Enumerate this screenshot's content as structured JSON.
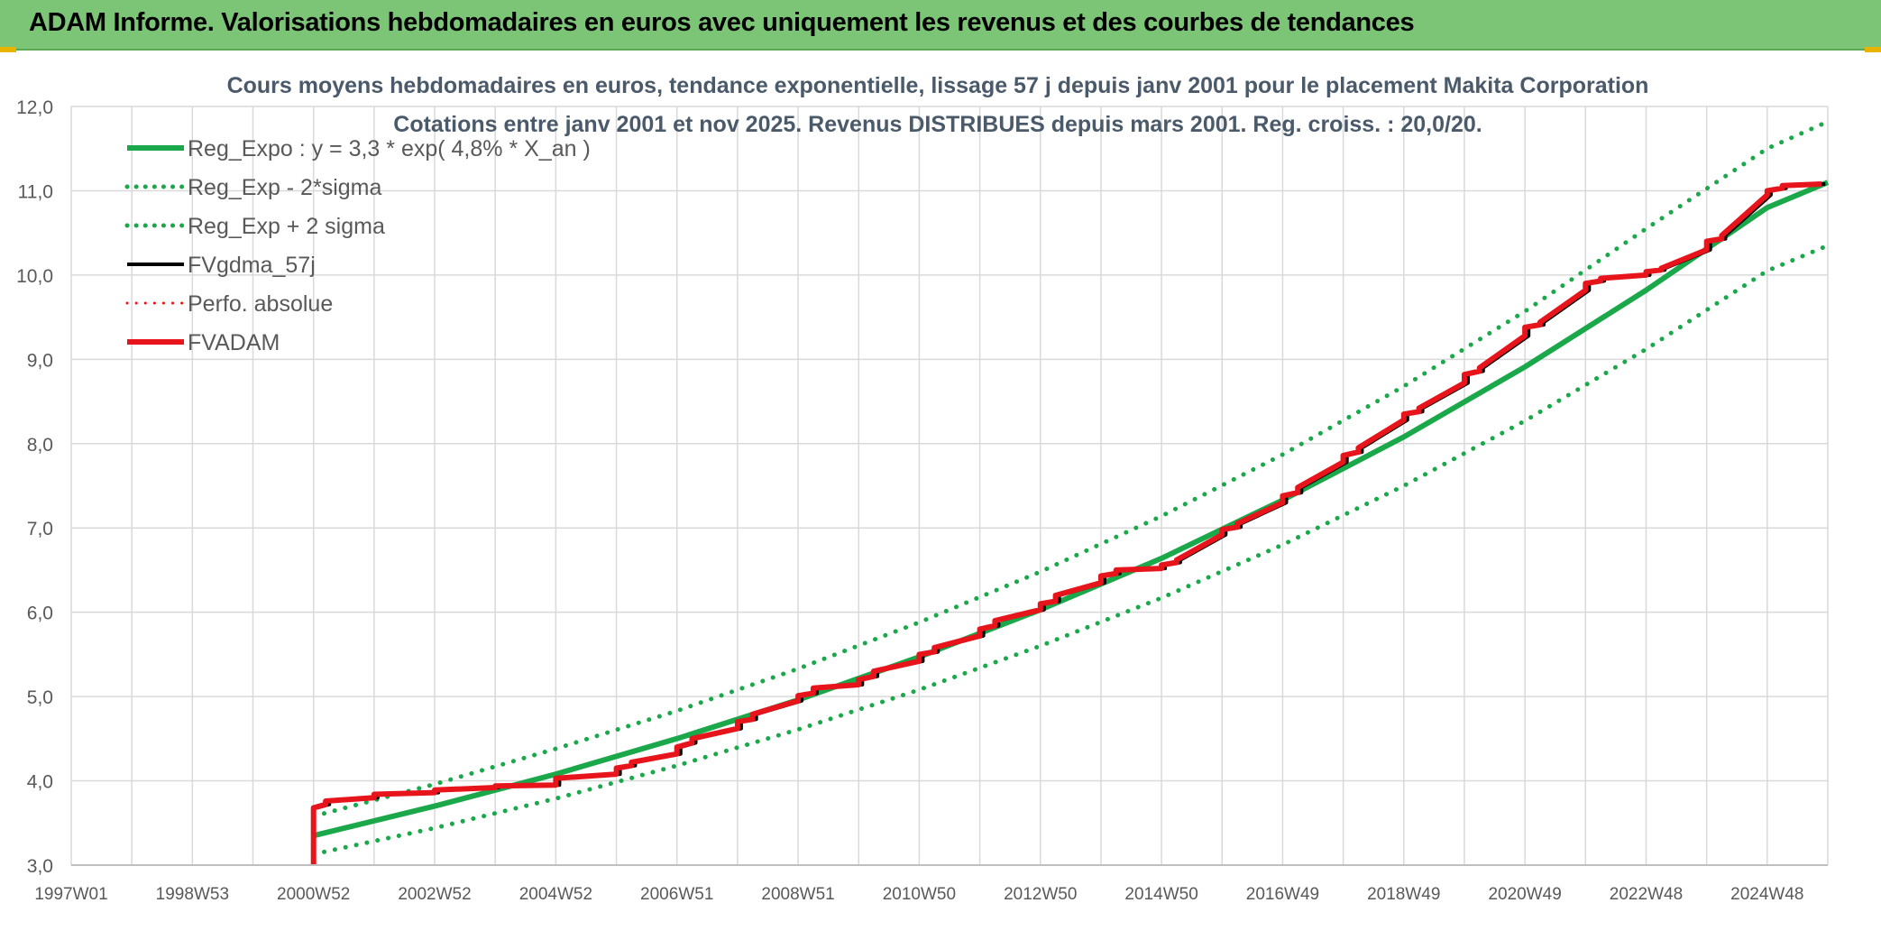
{
  "banner": {
    "title": "ADAM Informe. Valorisations hebdomadaires en euros avec uniquement les revenus et des courbes de tendances"
  },
  "colors": {
    "banner_bg": "#7cc576",
    "reg_expo": "#1aa84a",
    "fvgdma": "#000000",
    "fvadam": "#e8141b",
    "perfo": "#e8141b",
    "grid": "#d9d9d9"
  },
  "chart_data": {
    "type": "line",
    "title_line1": "Cours moyens hebdomadaires en euros, tendance exponentielle, lissage 57 j depuis janv 2001 pour le placement Makita Corporation",
    "title_line2": "Cotations entre janv 2001 et nov 2025. Revenus DISTRIBUES depuis mars 2001. Reg. croiss. : 20,0/20.",
    "x_tick_labels": [
      "1997W01",
      "1998W53",
      "2000W52",
      "2002W52",
      "2004W52",
      "2006W51",
      "2008W51",
      "2010W50",
      "2012W50",
      "2014W50",
      "2016W49",
      "2018W49",
      "2020W49",
      "2022W48",
      "2024W48"
    ],
    "x_range_years": [
      1997.0,
      2026.0
    ],
    "y_tick_labels": [
      "3,0",
      "4,0",
      "5,0",
      "6,0",
      "7,0",
      "8,0",
      "9,0",
      "10,0",
      "11,0",
      "12,0"
    ],
    "ylim": [
      3.0,
      12.0
    ],
    "grid": true,
    "legend_placement": "top-left",
    "legend": [
      {
        "name": "Reg_Expo : y = 3,3 * exp( 4,8% *  X_an )",
        "color": "#1aa84a",
        "style": "solid",
        "width": 6
      },
      {
        "name": "Reg_Exp - 2*sigma",
        "color": "#1aa84a",
        "style": "dotted",
        "width": 5
      },
      {
        "name": "Reg_Exp + 2 sigma",
        "color": "#1aa84a",
        "style": "dotted",
        "width": 5
      },
      {
        "name": "FVgdma_57j",
        "color": "#000000",
        "style": "solid",
        "width": 4
      },
      {
        "name": "Perfo. absolue",
        "color": "#e8141b",
        "style": "dotted",
        "width": 3
      },
      {
        "name": "FVADAM",
        "color": "#e8141b",
        "style": "solid",
        "width": 6
      }
    ],
    "series": [
      {
        "name": "Reg_Expo : y = 3,3 * exp( 4,8% *  X_an )",
        "x": [
          2001.0,
          2003.0,
          2005.0,
          2007.0,
          2009.0,
          2011.0,
          2013.0,
          2015.0,
          2017.0,
          2019.0,
          2021.0,
          2023.0,
          2025.0,
          2026.0
        ],
        "y": [
          3.35,
          3.7,
          4.08,
          4.5,
          4.96,
          5.47,
          6.03,
          6.64,
          7.33,
          8.08,
          8.91,
          9.82,
          10.8,
          11.1
        ]
      },
      {
        "name": "Reg_Exp - 2*sigma",
        "x": [
          2001.0,
          2003.0,
          2005.0,
          2007.0,
          2009.0,
          2011.0,
          2013.0,
          2015.0,
          2017.0,
          2019.0,
          2021.0,
          2023.0,
          2025.0,
          2026.0
        ],
        "y": [
          3.13,
          3.44,
          3.79,
          4.18,
          4.61,
          5.08,
          5.6,
          6.17,
          6.8,
          7.5,
          8.27,
          9.12,
          10.05,
          10.35
        ]
      },
      {
        "name": "Reg_Exp + 2 sigma",
        "x": [
          2001.0,
          2003.0,
          2005.0,
          2007.0,
          2009.0,
          2011.0,
          2013.0,
          2015.0,
          2017.0,
          2019.0,
          2021.0,
          2023.0,
          2025.0,
          2026.0
        ],
        "y": [
          3.58,
          3.96,
          4.38,
          4.83,
          5.33,
          5.88,
          6.48,
          7.14,
          7.87,
          8.68,
          9.57,
          10.55,
          11.5,
          11.82
        ]
      },
      {
        "name": "FVADAM",
        "x": [
          2001.0,
          2001.0,
          2001.2,
          2001.2,
          2002.0,
          2002.0,
          2003.0,
          2003.0,
          2004.0,
          2004.0,
          2005.0,
          2005.0,
          2006.0,
          2006.0,
          2006.25,
          2006.25,
          2007.0,
          2007.0,
          2007.25,
          2007.25,
          2008.0,
          2008.0,
          2008.25,
          2008.25,
          2009.0,
          2009.0,
          2009.25,
          2009.25,
          2010.0,
          2010.0,
          2010.25,
          2010.25,
          2011.0,
          2011.0,
          2011.25,
          2011.25,
          2012.0,
          2012.0,
          2012.25,
          2012.25,
          2013.0,
          2013.0,
          2013.25,
          2013.25,
          2014.0,
          2014.0,
          2014.25,
          2014.25,
          2015.0,
          2015.0,
          2015.25,
          2015.25,
          2016.0,
          2016.0,
          2016.25,
          2016.25,
          2017.0,
          2017.0,
          2017.25,
          2017.25,
          2018.0,
          2018.0,
          2018.25,
          2018.25,
          2019.0,
          2019.0,
          2019.25,
          2019.25,
          2020.0,
          2020.0,
          2020.25,
          2020.25,
          2021.0,
          2021.0,
          2021.25,
          2021.25,
          2022.0,
          2022.0,
          2022.25,
          2022.25,
          2023.0,
          2023.0,
          2023.25,
          2023.25,
          2024.0,
          2024.0,
          2024.25,
          2024.25,
          2025.0,
          2025.0,
          2025.25,
          2025.25,
          2025.9
        ],
        "y": [
          3.0,
          3.68,
          3.72,
          3.76,
          3.8,
          3.84,
          3.86,
          3.89,
          3.92,
          3.94,
          3.95,
          4.03,
          4.08,
          4.15,
          4.18,
          4.22,
          4.32,
          4.4,
          4.45,
          4.5,
          4.62,
          4.7,
          4.73,
          4.79,
          4.95,
          5.01,
          5.04,
          5.1,
          5.14,
          5.2,
          5.24,
          5.3,
          5.42,
          5.5,
          5.53,
          5.58,
          5.72,
          5.8,
          5.84,
          5.9,
          6.03,
          6.1,
          6.13,
          6.2,
          6.35,
          6.43,
          6.46,
          6.5,
          6.52,
          6.56,
          6.59,
          6.62,
          6.92,
          6.98,
          7.01,
          7.05,
          7.3,
          7.38,
          7.42,
          7.48,
          7.78,
          7.86,
          7.9,
          7.95,
          8.28,
          8.35,
          8.38,
          8.42,
          8.72,
          8.82,
          8.86,
          8.9,
          9.28,
          9.38,
          9.41,
          9.44,
          9.82,
          9.9,
          9.93,
          9.96,
          10.0,
          10.04,
          10.06,
          10.08,
          10.3,
          10.4,
          10.43,
          10.47,
          10.95,
          11.0,
          11.03,
          11.06,
          11.08
        ]
      }
    ]
  }
}
